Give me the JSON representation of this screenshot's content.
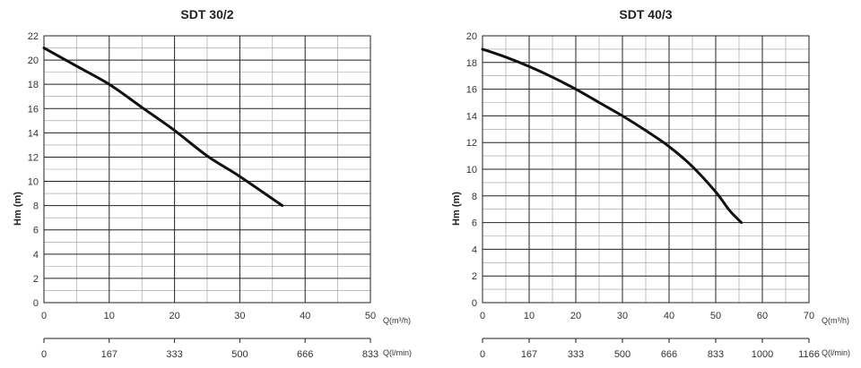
{
  "chart_data": [
    {
      "type": "line",
      "title": "SDT 30/2",
      "ylabel": "Hm    (m)",
      "xlabel": "Q(m³/h)",
      "x2label": "Q(l/min)",
      "xlim": [
        0,
        50
      ],
      "ylim": [
        0,
        22
      ],
      "xticks": [
        0,
        10,
        20,
        30,
        40,
        50
      ],
      "yticks": [
        0,
        2,
        4,
        6,
        8,
        10,
        12,
        14,
        16,
        18,
        20,
        22
      ],
      "x2ticks": [
        "0",
        "167",
        "333",
        "500",
        "666",
        "833"
      ],
      "grid": true,
      "series": [
        {
          "x": [
            0,
            5,
            10,
            15,
            20,
            25,
            30,
            36.5
          ],
          "y": [
            21,
            19.5,
            18,
            16.1,
            14.2,
            12.1,
            10.4,
            8
          ]
        }
      ]
    },
    {
      "type": "line",
      "title": "SDT 40/3",
      "ylabel": "Hm    (m)",
      "xlabel": "Q(m³/h)",
      "x2label": "Q(l/min)",
      "xlim": [
        0,
        70
      ],
      "ylim": [
        0,
        20
      ],
      "xticks": [
        0,
        10,
        20,
        30,
        40,
        50,
        60,
        70
      ],
      "yticks": [
        0,
        2,
        4,
        6,
        8,
        10,
        12,
        14,
        16,
        18,
        20
      ],
      "x2ticks": [
        "0",
        "167",
        "333",
        "500",
        "666",
        "833",
        "1000",
        "1166"
      ],
      "grid": true,
      "series": [
        {
          "x": [
            0,
            5,
            10,
            15,
            20,
            25,
            30,
            35,
            40,
            45,
            50,
            53,
            55.5
          ],
          "y": [
            19,
            18.4,
            17.7,
            16.9,
            16,
            15,
            14,
            12.9,
            11.7,
            10.2,
            8.3,
            6.9,
            6
          ]
        }
      ]
    }
  ]
}
